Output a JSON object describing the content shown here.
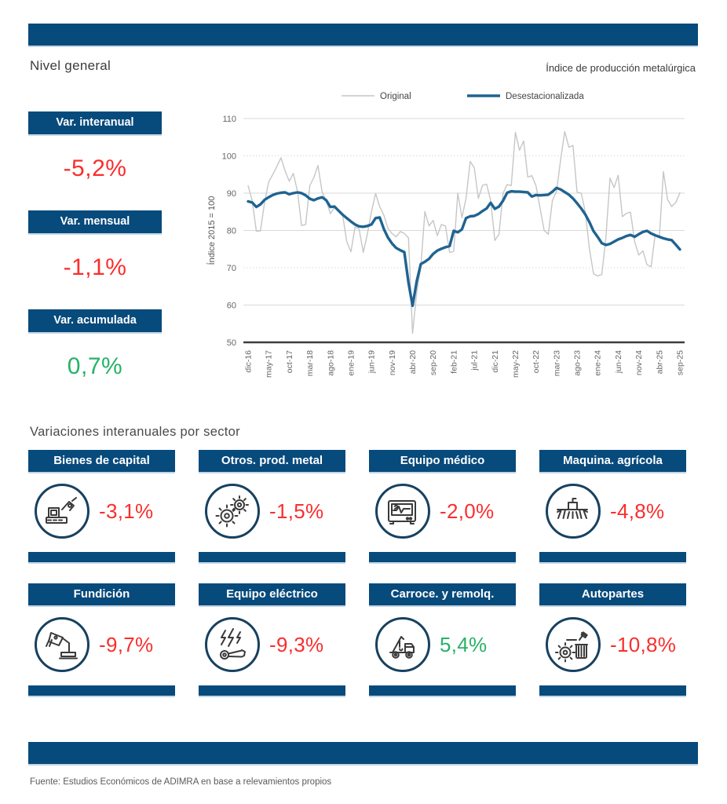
{
  "header": {
    "left_title": "Nivel general",
    "right_title": "Índice de producción metalúrgica"
  },
  "colors": {
    "brand_blue": "#074a7c",
    "line_original": "#c6c6c6",
    "line_desest": "#1f6391",
    "negative_red": "#fb2d2d",
    "positive_green": "#27b266"
  },
  "stats": [
    {
      "label": "Var. interanual",
      "value": "-5,2%",
      "color": "#fb2d2d"
    },
    {
      "label": "Var. mensual",
      "value": "-1,1%",
      "color": "#fb2d2d"
    },
    {
      "label": "Var. acumulada",
      "value": "0,7%",
      "color": "#27b266"
    }
  ],
  "chart_data": {
    "type": "line",
    "title": "",
    "ylabel": "Índice 2015 = 100",
    "ylim": [
      50,
      110
    ],
    "yticks": [
      50,
      60,
      70,
      80,
      90,
      100,
      110
    ],
    "dashed_gridlines": [
      100,
      70
    ],
    "grid": true,
    "legend_position": "top",
    "tick_every": 5,
    "x_tick_labels": [
      "dic-16",
      "may-17",
      "oct-17",
      "mar-18",
      "ago-18",
      "ene-19",
      "jun-19",
      "nov-19",
      "abr-20",
      "sep-20",
      "feb-21",
      "jul-21",
      "dic-21",
      "may-22",
      "oct-22",
      "mar-23",
      "ago-23",
      "ene-24",
      "jun-24",
      "nov-24",
      "abr-25",
      "sep-25"
    ],
    "series": [
      {
        "name": "Original",
        "color": "#c6c6c6",
        "width": 1.4,
        "values": [
          92.0,
          88.0,
          79.8,
          79.9,
          87.5,
          93.0,
          95.0,
          97.2,
          99.5,
          96.0,
          93.2,
          95.3,
          90.5,
          81.3,
          81.6,
          92.0,
          94.2,
          97.4,
          90.3,
          88.0,
          84.5,
          86.2,
          85.6,
          84.0,
          77.0,
          74.3,
          80.9,
          80.4,
          74.1,
          79.0,
          85.0,
          89.9,
          86.4,
          84.1,
          80.6,
          79.2,
          78.3,
          79.7,
          79.2,
          78.0,
          52.4,
          63.4,
          70.2,
          85.1,
          81.2,
          82.7,
          78.6,
          81.6,
          81.2,
          74.1,
          74.4,
          90.0,
          83.4,
          88.6,
          98.5,
          96.8,
          88.6,
          92.1,
          92.4,
          88.0,
          77.3,
          79.0,
          90.0,
          92.3,
          92.0,
          106.3,
          101.5,
          104.0,
          94.3,
          94.7,
          92.0,
          86.0,
          80.0,
          79.0,
          88.0,
          90.5,
          99.0,
          106.5,
          102.3,
          102.8,
          90.3,
          90.0,
          85.0,
          75.0,
          68.4,
          67.8,
          68.2,
          78.0,
          94.0,
          91.5,
          94.8,
          83.7,
          84.6,
          84.9,
          77.0,
          73.4,
          74.5,
          70.8,
          70.3,
          79.0,
          78.0,
          95.8,
          88.3,
          86.4,
          87.5,
          90.1
        ]
      },
      {
        "name": "Desestacionalizada",
        "color": "#1f6391",
        "width": 3.4,
        "values": [
          87.8,
          87.5,
          86.3,
          87.0,
          88.2,
          88.9,
          89.5,
          89.9,
          90.1,
          90.2,
          89.7,
          90.0,
          90.2,
          90.0,
          89.4,
          88.5,
          88.1,
          88.6,
          88.9,
          88.1,
          86.3,
          86.4,
          85.3,
          84.2,
          83.3,
          82.4,
          81.6,
          81.1,
          81.0,
          81.2,
          81.6,
          83.3,
          83.5,
          80.4,
          78.1,
          76.5,
          75.3,
          74.7,
          74.2,
          66.0,
          59.8,
          66.4,
          71.0,
          71.6,
          72.4,
          73.7,
          74.6,
          75.1,
          75.5,
          75.8,
          79.9,
          79.5,
          80.3,
          83.3,
          83.8,
          83.9,
          84.4,
          85.2,
          85.9,
          87.4,
          85.8,
          86.4,
          88.0,
          90.1,
          90.5,
          90.4,
          90.4,
          90.3,
          90.2,
          89.1,
          89.5,
          89.4,
          89.5,
          89.6,
          90.4,
          91.4,
          91.0,
          90.3,
          89.6,
          88.6,
          87.3,
          85.9,
          84.3,
          82.2,
          79.8,
          78.3,
          76.6,
          76.1,
          76.4,
          77.0,
          77.6,
          78.0,
          78.5,
          78.8,
          78.3,
          79.0,
          79.6,
          79.9,
          79.2,
          78.7,
          78.3,
          77.9,
          77.6,
          77.4,
          76.2,
          74.9
        ]
      }
    ]
  },
  "sectors": {
    "title": "Variaciones interanuales por sector",
    "items": [
      {
        "label": "Bienes de capital",
        "value": "-3,1%",
        "color": "#fb2d2d",
        "icon": "capital-goods-machine-icon"
      },
      {
        "label": "Otros. prod. metal",
        "value": "-1,5%",
        "color": "#fb2d2d",
        "icon": "gears-icon"
      },
      {
        "label": "Equipo médico",
        "value": "-2,0%",
        "color": "#fb2d2d",
        "icon": "medical-monitor-icon"
      },
      {
        "label": "Maquina. agrícola",
        "value": "-4,8%",
        "color": "#fb2d2d",
        "icon": "agricultural-machinery-icon"
      },
      {
        "label": "Fundición",
        "value": "-9,7%",
        "color": "#fb2d2d",
        "icon": "foundry-ladle-icon"
      },
      {
        "label": "Equipo eléctrico",
        "value": "-9,3%",
        "color": "#fb2d2d",
        "icon": "electric-equipment-icon"
      },
      {
        "label": "Carroce. y remolq.",
        "value": "5,4%",
        "color": "#27b266",
        "icon": "tow-truck-icon"
      },
      {
        "label": "Autopartes",
        "value": "-10,8%",
        "color": "#fb2d2d",
        "icon": "auto-parts-icon"
      }
    ]
  },
  "footer": {
    "source": "Fuente: Estudios Económicos de ADIMRA en base a relevamientos propios"
  }
}
